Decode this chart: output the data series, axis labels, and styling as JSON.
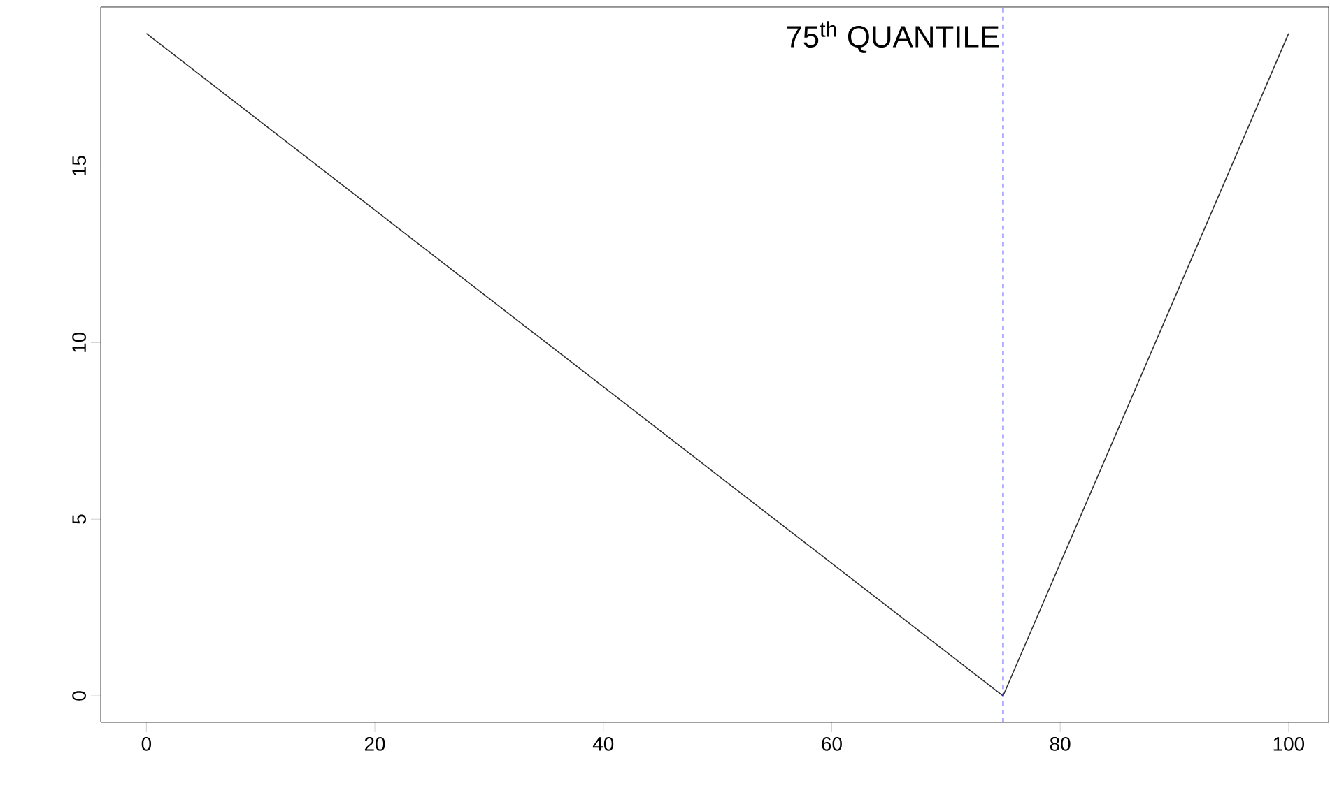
{
  "chart_data": {
    "type": "line",
    "x": [
      0,
      75,
      100
    ],
    "series": [
      {
        "color": "#303030",
        "values": [
          18.75,
          0,
          18.75
        ]
      }
    ],
    "xlim": [
      -4,
      103.5
    ],
    "ylim": [
      -0.75,
      19.5
    ],
    "xticks": [
      0,
      20,
      40,
      60,
      80,
      100
    ],
    "yticks": [
      0,
      5,
      10,
      15
    ],
    "ref_lines": [
      {
        "axis": "x",
        "value": 75,
        "label": "75$^{th}$ QUANTILE",
        "color": "#0000ff",
        "line_style": "dashed"
      }
    ],
    "grid": false,
    "marker": "none",
    "line_style": "solid"
  }
}
